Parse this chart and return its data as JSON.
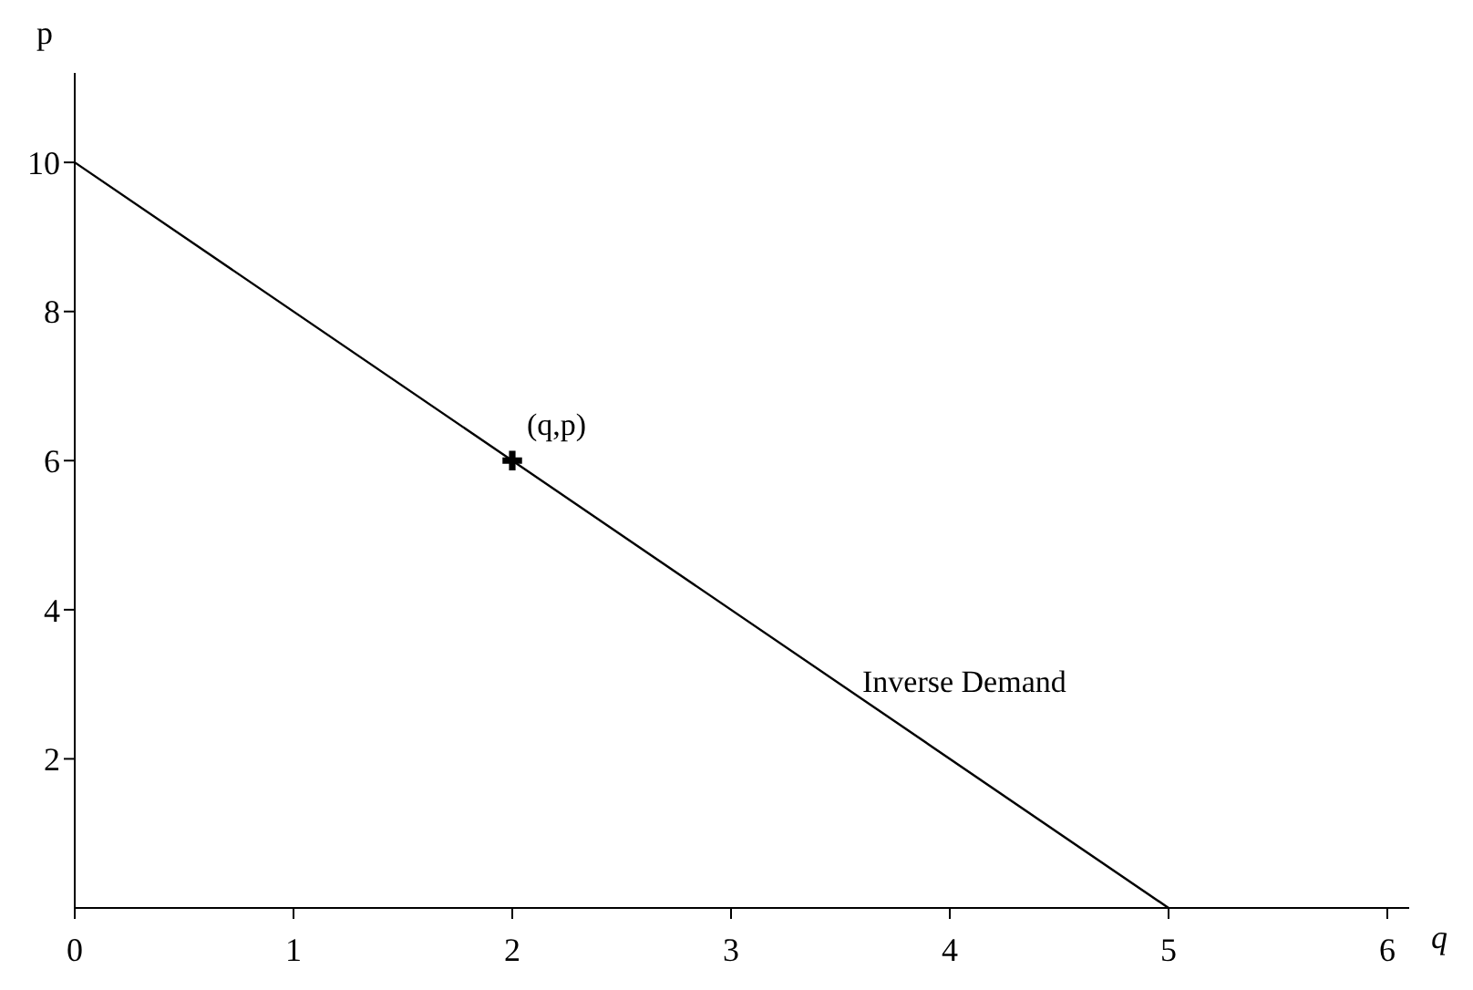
{
  "chart_data": {
    "type": "line",
    "xlabel": "q",
    "ylabel": "p",
    "xlim": [
      0,
      6.1
    ],
    "ylim": [
      0,
      11.2
    ],
    "xticks": [
      0,
      1,
      2,
      3,
      4,
      5,
      6
    ],
    "yticks": [
      2,
      4,
      6,
      8,
      10
    ],
    "grid": false,
    "legend": false,
    "series": [
      {
        "x": [
          0,
          5
        ],
        "values": [
          10,
          0
        ],
        "color": "#000000",
        "marker": "none"
      },
      {
        "type": "scatter",
        "x": [
          2
        ],
        "values": [
          6
        ],
        "color": "#000000",
        "marker": "cross"
      }
    ],
    "annotations": [
      {
        "text": "(q,p)",
        "x": 2,
        "y": 6
      },
      {
        "text": "Inverse Demand",
        "x": 3.6,
        "y": 2.8
      }
    ]
  }
}
